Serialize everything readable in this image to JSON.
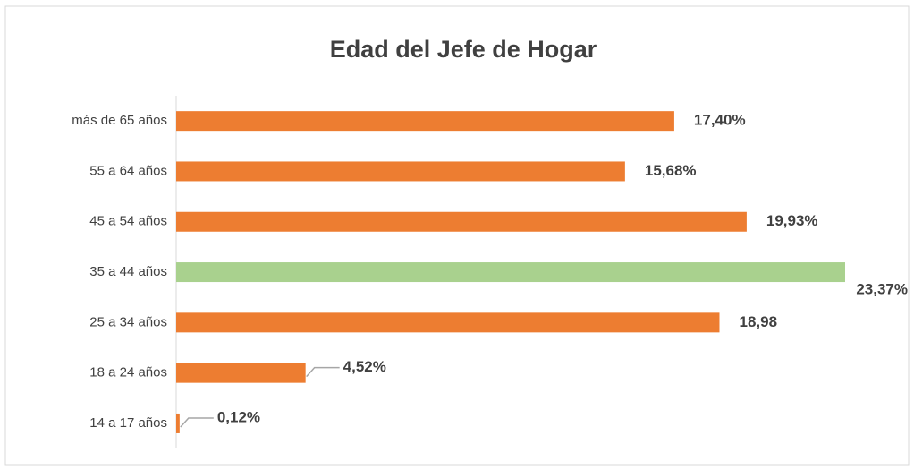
{
  "chart_data": {
    "type": "bar",
    "orientation": "horizontal",
    "title": "Edad del Jefe de Hogar",
    "categories": [
      "más de 65 años",
      "55 a 64 años",
      "45 a 54 años",
      "35 a 44 años",
      "25 a 34 años",
      "18 a 24 años",
      "14 a 17 años"
    ],
    "values": [
      17.4,
      15.68,
      19.93,
      23.37,
      18.98,
      4.52,
      0.12
    ],
    "value_labels": [
      "17,40%",
      "15,68%",
      "19,93%",
      "23,37%",
      "18,98",
      "4,52%",
      "0,12%"
    ],
    "colors": [
      "#ed7d31",
      "#ed7d31",
      "#ed7d31",
      "#a9d18e",
      "#ed7d31",
      "#ed7d31",
      "#ed7d31"
    ]
  }
}
